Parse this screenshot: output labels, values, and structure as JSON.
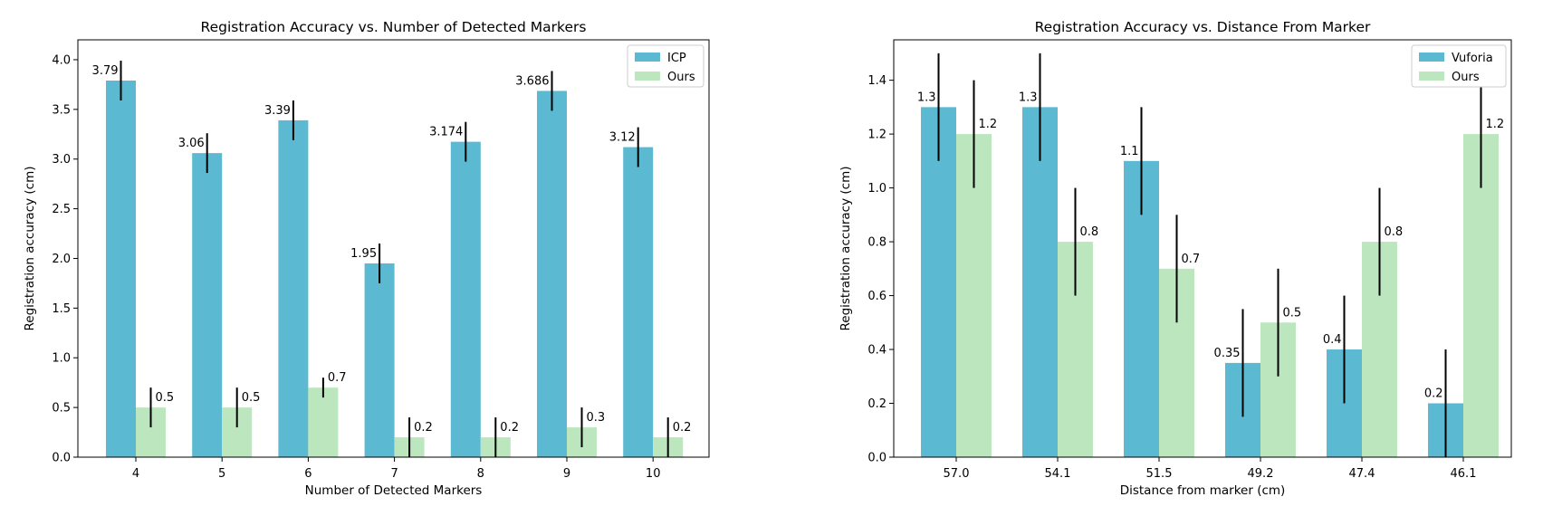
{
  "chart_data": [
    {
      "type": "bar",
      "title": "Registration Accuracy vs. Number of Detected Markers",
      "xlabel": "Number of Detected Markers",
      "ylabel": "Registration accuracy (cm)",
      "ylim": [
        0,
        4.2
      ],
      "yticks": [
        "0.0",
        "0.5",
        "1.0",
        "1.5",
        "2.0",
        "2.5",
        "3.0",
        "3.5",
        "4.0"
      ],
      "categories": [
        "4",
        "5",
        "6",
        "7",
        "8",
        "9",
        "10"
      ],
      "legend_position": "top-right",
      "series": [
        {
          "name": "ICP",
          "color": "#5bbad1",
          "values": [
            3.79,
            3.06,
            3.39,
            1.95,
            3.174,
            3.686,
            3.12
          ],
          "labels": [
            "3.79",
            "3.06",
            "3.39",
            "1.95",
            "3.174",
            "3.686",
            "3.12"
          ],
          "errors": [
            0.2,
            0.2,
            0.2,
            0.2,
            0.2,
            0.2,
            0.2
          ]
        },
        {
          "name": "Ours",
          "color": "#bce6bd",
          "values": [
            0.5,
            0.5,
            0.7,
            0.2,
            0.2,
            0.3,
            0.2
          ],
          "labels": [
            "0.5",
            "0.5",
            "0.7",
            "0.2",
            "0.2",
            "0.3",
            "0.2"
          ],
          "errors": [
            0.2,
            0.2,
            0.1,
            0.2,
            0.2,
            0.2,
            0.2
          ]
        }
      ]
    },
    {
      "type": "bar",
      "title": "Registration Accuracy vs. Distance From Marker",
      "xlabel": "Distance from marker (cm)",
      "ylabel": "Registration accuracy (cm)",
      "ylim": [
        0,
        1.55
      ],
      "yticks": [
        "0.0",
        "0.2",
        "0.4",
        "0.6",
        "0.8",
        "1.0",
        "1.2",
        "1.4"
      ],
      "categories": [
        "57.0",
        "54.1",
        "51.5",
        "49.2",
        "47.4",
        "46.1"
      ],
      "legend_position": "top-right",
      "series": [
        {
          "name": "Vuforia",
          "color": "#5bbad1",
          "values": [
            1.3,
            1.3,
            1.1,
            0.35,
            0.4,
            0.2
          ],
          "labels": [
            "1.3",
            "1.3",
            "1.1",
            "0.35",
            "0.4",
            "0.2"
          ],
          "errors": [
            0.2,
            0.2,
            0.2,
            0.2,
            0.2,
            0.2
          ]
        },
        {
          "name": "Ours",
          "color": "#bce6bd",
          "values": [
            1.2,
            0.8,
            0.7,
            0.5,
            0.8,
            1.2
          ],
          "labels": [
            "1.2",
            "0.8",
            "0.7",
            "0.5",
            "0.8",
            "1.2"
          ],
          "errors": [
            0.2,
            0.2,
            0.2,
            0.2,
            0.2,
            0.2
          ]
        }
      ]
    }
  ]
}
